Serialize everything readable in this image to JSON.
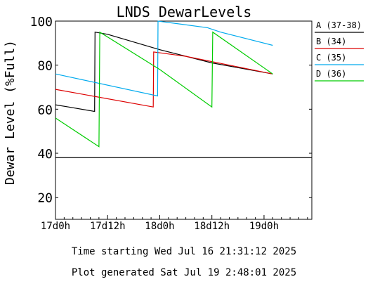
{
  "chart_data": {
    "type": "line",
    "title": "LNDS DewarLevels",
    "ylabel": "Dewar Level (%Full)",
    "xlabel": "",
    "ylim": [
      10,
      100
    ],
    "yticks": [
      20,
      40,
      60,
      80,
      100
    ],
    "xlim": [
      0,
      59
    ],
    "x_units": "hours since 17d0h",
    "xticks": [
      {
        "x": 0,
        "label": "17d0h"
      },
      {
        "x": 12,
        "label": "17d12h"
      },
      {
        "x": 24,
        "label": "18d0h"
      },
      {
        "x": 36,
        "label": "18d12h"
      },
      {
        "x": 48,
        "label": "19d0h"
      }
    ],
    "hline": 38,
    "legend_position": "right",
    "series": [
      {
        "name": "A (37-38)",
        "color": "#000000",
        "points": [
          [
            0,
            62
          ],
          [
            3,
            61
          ],
          [
            9,
            59
          ],
          [
            9.1,
            95
          ],
          [
            12,
            94
          ],
          [
            24,
            87
          ],
          [
            36,
            81
          ],
          [
            50,
            76
          ]
        ]
      },
      {
        "name": "B (34)",
        "color": "#dd0000",
        "points": [
          [
            0,
            69
          ],
          [
            22.5,
            61
          ],
          [
            22.6,
            86
          ],
          [
            30,
            84
          ],
          [
            40,
            80
          ],
          [
            50,
            76
          ]
        ]
      },
      {
        "name": "C (35)",
        "color": "#00aaee",
        "points": [
          [
            0,
            76
          ],
          [
            23.5,
            66
          ],
          [
            23.6,
            100
          ],
          [
            35,
            97
          ],
          [
            38,
            95
          ],
          [
            50,
            89
          ]
        ]
      },
      {
        "name": "D (36)",
        "color": "#00cc00",
        "points": [
          [
            0,
            56
          ],
          [
            10,
            43
          ],
          [
            10.2,
            95
          ],
          [
            24,
            78
          ],
          [
            36,
            61
          ],
          [
            36.2,
            95
          ],
          [
            50,
            76
          ]
        ]
      }
    ],
    "footer": {
      "time_start": "Time starting Wed Jul 16 21:31:12 2025",
      "generated": "Plot generated Sat Jul 19  2:48:01 2025"
    }
  }
}
